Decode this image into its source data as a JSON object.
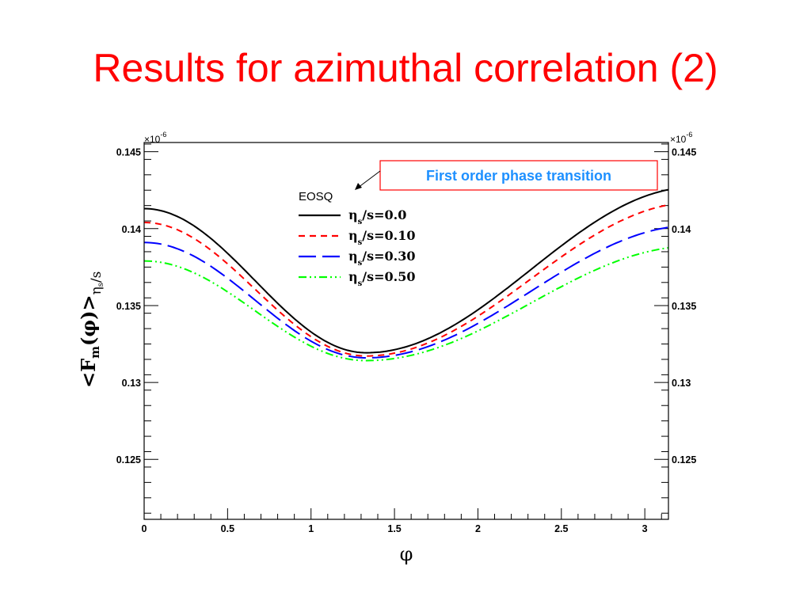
{
  "slide": {
    "title": "Results for azimuthal correlation (2)"
  },
  "colors": {
    "title": "#ff0000",
    "annotation_text": "#1e90ff",
    "annotation_border": "#ff0000"
  },
  "chart_data": {
    "type": "line",
    "xlabel": "φ",
    "ylabel_main": "<F",
    "ylabel_sub": "m",
    "ylabel_arg": "(φ)>",
    "ylabel_suffix_main": "η",
    "ylabel_suffix_sub": "s",
    "ylabel_suffix_tail": "/s",
    "scale_exponent": "×10",
    "scale_power": "-6",
    "xlim": [
      0,
      3.1416
    ],
    "ylim": [
      0.1211,
      0.1456
    ],
    "xticks": [
      0,
      0.5,
      1,
      1.5,
      2,
      2.5,
      3
    ],
    "xtick_labels": [
      "0",
      "0.5",
      "1",
      "1.5",
      "2",
      "2.5",
      "3"
    ],
    "yticks": [
      0.125,
      0.13,
      0.135,
      0.14,
      0.145
    ],
    "ytick_labels": [
      "0.125",
      "0.13",
      "0.135",
      "0.14",
      "0.145"
    ],
    "grid": false,
    "legend_header": "EOSQ",
    "legend_placement": "top-center",
    "annotation": "First order phase transition",
    "series": [
      {
        "name_main": "η",
        "name_sub": "s",
        "name_tail": "/s=0.0",
        "color": "#000000",
        "dash": "solid",
        "y0": 0.1413,
        "amp": 0.00937
      },
      {
        "name_main": "η",
        "name_sub": "s",
        "name_tail": "/s=0.10",
        "color": "#ff0000",
        "dash": "dashed",
        "y0": 0.1404,
        "amp": 0.00868
      },
      {
        "name_main": "η",
        "name_sub": "s",
        "name_tail": "/s=0.30",
        "color": "#0000ff",
        "dash": "long-dash",
        "y0": 0.1391,
        "amp": 0.0075
      },
      {
        "name_main": "η",
        "name_sub": "s",
        "name_tail": "/s=0.50",
        "color": "#00ff00",
        "dash": "dash-dot-dot",
        "y0": 0.1379,
        "amp": 0.00648
      }
    ]
  }
}
